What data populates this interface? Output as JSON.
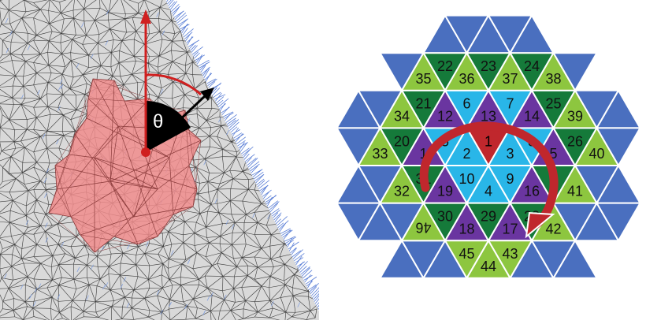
{
  "left_panel": {
    "angle_label": "θ",
    "colors": {
      "surface": "#d9d9d9",
      "mesh_lines": "#3a3a3a",
      "patch_fill": "#f08c8c",
      "normal_axis": "#d01f1f",
      "direction_arrow": "#000000",
      "angle_wedge": "#000000",
      "normals": "#5b7fd6"
    }
  },
  "right_panel": {
    "colors": {
      "center": "#c0272d",
      "ring1": "#29b6e8",
      "ring2": "#6a35a0",
      "ring3": "#8dc63f",
      "ring3_dark": "#157a3a",
      "outer": "#4a6fbf",
      "arrow": "#c0272d"
    },
    "cells": [
      {
        "id": "1",
        "color": "center",
        "label": "1"
      },
      {
        "id": "2",
        "color": "ring1",
        "label": "2"
      },
      {
        "id": "3",
        "color": "ring1",
        "label": "3"
      },
      {
        "id": "4",
        "color": "ring1",
        "label": "4"
      },
      {
        "id": "5",
        "color": "ring1",
        "label": "5"
      },
      {
        "id": "6",
        "color": "ring1",
        "label": "6"
      },
      {
        "id": "7",
        "color": "ring1",
        "label": "7"
      },
      {
        "id": "8",
        "color": "ring1",
        "label": "8"
      },
      {
        "id": "9",
        "color": "ring1",
        "label": "9"
      },
      {
        "id": "10",
        "color": "ring1",
        "label": "10"
      },
      {
        "id": "11",
        "color": "ring2",
        "label": "1"
      },
      {
        "id": "12",
        "color": "ring2",
        "label": "12"
      },
      {
        "id": "13",
        "color": "ring2",
        "label": "13"
      },
      {
        "id": "14",
        "color": "ring2",
        "label": "14"
      },
      {
        "id": "15",
        "color": "ring2",
        "label": "5"
      },
      {
        "id": "16",
        "color": "ring2",
        "label": "16"
      },
      {
        "id": "17",
        "color": "ring2",
        "label": "17"
      },
      {
        "id": "18",
        "color": "ring2",
        "label": "18"
      },
      {
        "id": "19",
        "color": "ring2",
        "label": "19"
      },
      {
        "id": "20",
        "color": "ring3_dark",
        "label": "20"
      },
      {
        "id": "21",
        "color": "ring3_dark",
        "label": "21"
      },
      {
        "id": "22",
        "color": "ring3_dark",
        "label": "22"
      },
      {
        "id": "23",
        "color": "ring3_dark",
        "label": "23"
      },
      {
        "id": "24",
        "color": "ring3_dark",
        "label": "24"
      },
      {
        "id": "25",
        "color": "ring3_dark",
        "label": "25"
      },
      {
        "id": "26",
        "color": "ring3_dark",
        "label": "26"
      },
      {
        "id": "27",
        "color": "ring3_dark",
        "label": "7"
      },
      {
        "id": "28",
        "color": "ring3_dark",
        "label": "28"
      },
      {
        "id": "29",
        "color": "ring3_dark",
        "label": "29"
      },
      {
        "id": "30",
        "color": "ring3_dark",
        "label": "30"
      },
      {
        "id": "31",
        "color": "ring3_dark",
        "label": "31"
      },
      {
        "id": "32",
        "color": "ring3",
        "label": "32"
      },
      {
        "id": "33",
        "color": "ring3",
        "label": "33"
      },
      {
        "id": "34",
        "color": "ring3",
        "label": "34"
      },
      {
        "id": "35",
        "color": "ring3",
        "label": "35"
      },
      {
        "id": "36",
        "color": "ring3",
        "label": "36"
      },
      {
        "id": "37",
        "color": "ring3",
        "label": "37"
      },
      {
        "id": "38",
        "color": "ring3",
        "label": "38"
      },
      {
        "id": "39",
        "color": "ring3",
        "label": "39"
      },
      {
        "id": "40",
        "color": "ring3",
        "label": "40"
      },
      {
        "id": "41",
        "color": "ring3",
        "label": "41"
      },
      {
        "id": "42",
        "color": "ring3",
        "label": "42"
      },
      {
        "id": "43",
        "color": "ring3",
        "label": "43"
      },
      {
        "id": "44",
        "color": "ring3",
        "label": "44"
      },
      {
        "id": "45",
        "color": "ring3",
        "label": "45"
      },
      {
        "id": "46",
        "color": "ring3",
        "label": "46"
      }
    ]
  }
}
